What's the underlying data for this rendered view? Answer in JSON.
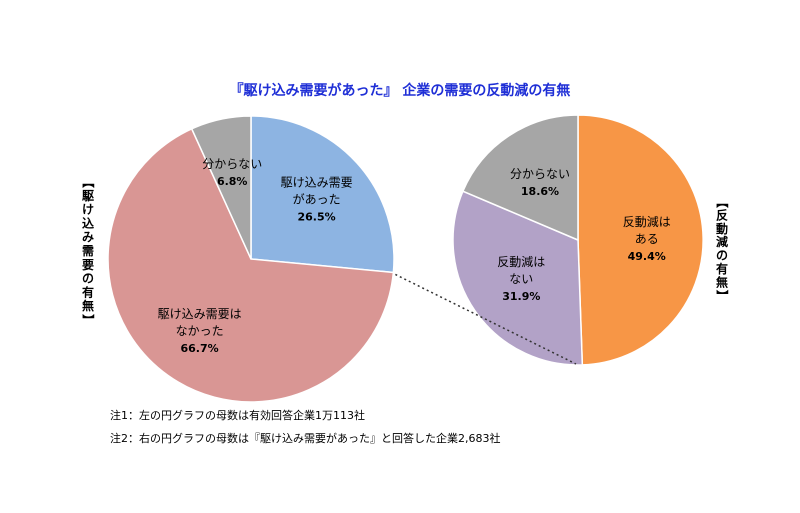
{
  "chart_data": {
    "title": "『駆け込み需要があった』 企業の需要の反動減の有無",
    "charts": [
      {
        "type": "pie",
        "axis_title": "【駆け込み需要の有無】",
        "slices": [
          {
            "label": [
              "駆け込み需要",
              "があった"
            ],
            "value": 26.5,
            "value_text": "26.5%",
            "color": "#8db4e2"
          },
          {
            "label": [
              "駆け込み需要は",
              "なかった"
            ],
            "value": 66.7,
            "value_text": "66.7%",
            "color": "#d99694"
          },
          {
            "label": [
              "分からない"
            ],
            "value": 6.8,
            "value_text": "6.8%",
            "color": "#a6a6a6"
          }
        ]
      },
      {
        "type": "pie",
        "axis_title": "【反動減の有無】",
        "slices": [
          {
            "label": [
              "反動減は",
              "ある"
            ],
            "value": 49.4,
            "value_text": "49.4%",
            "color": "#f79646"
          },
          {
            "label": [
              "反動減は",
              "ない"
            ],
            "value": 31.9,
            "value_text": "31.9%",
            "color": "#b2a2c7"
          },
          {
            "label": [
              "分からない"
            ],
            "value": 18.6,
            "value_text": "18.6%",
            "color": "#a6a6a6"
          }
        ]
      }
    ],
    "notes": [
      "注1：左の円グラフの母数は有効回答企業1万113社",
      "注2：右の円グラフの母数は『駆け込み需要があった』と回答した企業2,683社"
    ]
  }
}
